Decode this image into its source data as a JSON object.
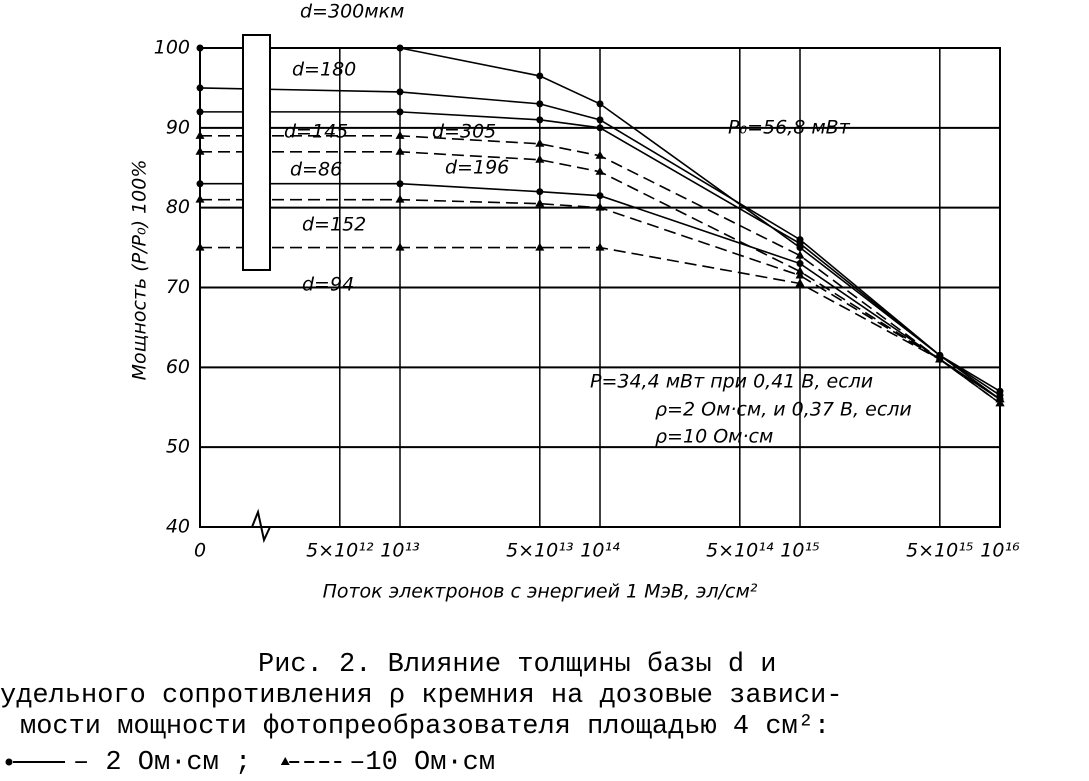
{
  "chart_data": {
    "type": "line",
    "y_label": "Мощность (P/P₀) 100%",
    "x_label": "Поток электронов с энергией 1 МэВ, эл/см²",
    "x": [
      1000000000000.0,
      10000000000000.0,
      50000000000000.0,
      100000000000000.0,
      1000000000000000.0,
      5000000000000000.0,
      1e+16
    ],
    "xlim": [
      1000000000000.0,
      1e+16
    ],
    "log_x": true,
    "xticks": [
      {
        "value": 1000000000000.0,
        "label": "0"
      },
      {
        "value": 5000000000000.0,
        "label": "5×10¹²"
      },
      {
        "value": 10000000000000.0,
        "label": "10¹³"
      },
      {
        "value": 50000000000000.0,
        "label": "5×10¹³"
      },
      {
        "value": 100000000000000.0,
        "label": "10¹⁴"
      },
      {
        "value": 500000000000000.0,
        "label": "5×10¹⁴"
      },
      {
        "value": 1000000000000000.0,
        "label": "10¹⁵"
      },
      {
        "value": 5000000000000000.0,
        "label": "5×10¹⁵"
      },
      {
        "value": 1e+16,
        "label": "10¹⁶"
      }
    ],
    "ylim": [
      40,
      100
    ],
    "yticks": [
      40,
      50,
      60,
      70,
      80,
      90,
      100
    ],
    "grid": true,
    "color": "#000000",
    "series": [
      {
        "name": "d=300мкм",
        "marker": "circle",
        "dash": false,
        "values": [
          100,
          100,
          96.5,
          93,
          75,
          61.5,
          57
        ]
      },
      {
        "name": "d=180",
        "marker": "circle",
        "dash": false,
        "values": [
          95,
          94.5,
          93,
          91,
          76,
          61.5,
          56.5
        ]
      },
      {
        "name": "d=145",
        "marker": "circle",
        "dash": false,
        "values": [
          92,
          92,
          91,
          90,
          75.5,
          61.5,
          56
        ]
      },
      {
        "name": "d=305",
        "marker": "triangle",
        "dash": true,
        "values": [
          89,
          89,
          88,
          86.5,
          74,
          61,
          56
        ]
      },
      {
        "name": "d=86",
        "marker": "circle",
        "dash": false,
        "values": [
          83,
          83,
          82,
          81.5,
          73,
          61,
          56
        ]
      },
      {
        "name": "d=196",
        "marker": "triangle",
        "dash": true,
        "values": [
          87,
          87,
          86,
          84.5,
          72,
          61,
          56
        ]
      },
      {
        "name": "d=152",
        "marker": "triangle",
        "dash": true,
        "values": [
          81,
          81,
          80.5,
          80,
          71.5,
          61,
          55.5
        ]
      },
      {
        "name": "d=94",
        "marker": "triangle",
        "dash": true,
        "values": [
          75,
          75,
          75,
          75,
          70.5,
          61,
          55.5
        ]
      }
    ],
    "annotations": [
      "P₀=56,8 мВт",
      "P=34,4 мВт  при 0,41 В, если",
      "ρ=2 Ом·см, и 0,37 В, если",
      "ρ=10 Ом·см"
    ],
    "caption": [
      "Рис. 2. Влияние толщины базы d  и",
      "удельного сопротивления  ρ  кремния на дозовые зависи-",
      "мости мощности фотопреобразователя площадью  4 см²:"
    ],
    "legend": [
      {
        "label": "– 2 Ом·см ;",
        "marker": "circle",
        "dash": false
      },
      {
        "label": "–10 Ом·см",
        "marker": "triangle",
        "dash": true
      }
    ]
  }
}
